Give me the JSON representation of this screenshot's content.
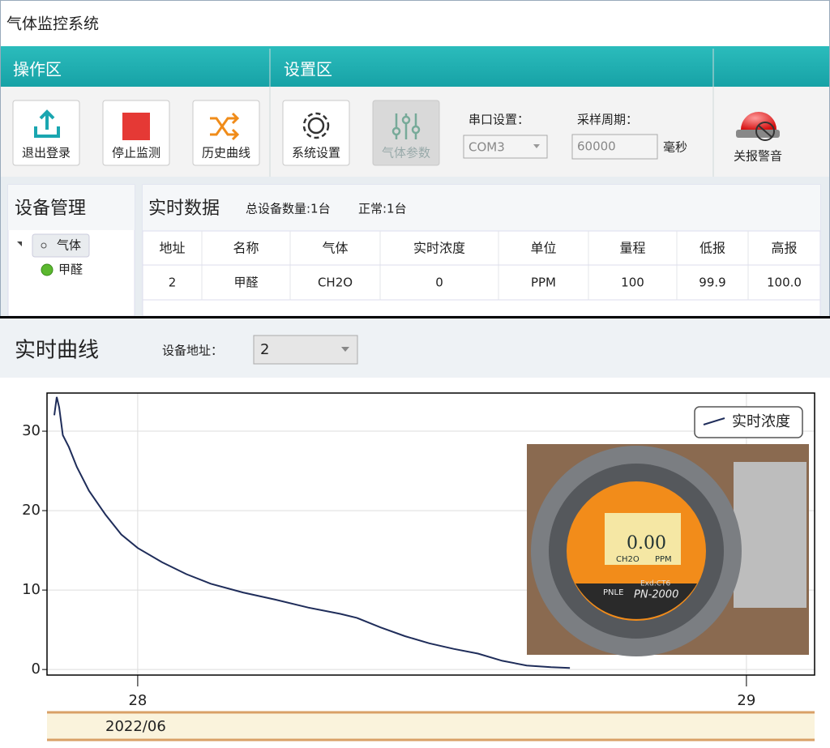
{
  "window": {
    "title": "气体监控系统"
  },
  "toolbar": {
    "sections": [
      {
        "title": "操作区",
        "buttons": [
          "退出登录",
          "停止监测",
          "历史曲线"
        ]
      },
      {
        "title": "设置区",
        "buttons": [
          "系统设置",
          "气体参数"
        ]
      }
    ],
    "serial_label": "串口设置：",
    "serial_value": "COM3",
    "period_label": "采样周期：",
    "period_value": "60000",
    "period_unit": "毫秒",
    "alarm_button": "关报警音"
  },
  "device_panel": {
    "title": "设备管理",
    "group": "气体",
    "items": [
      "甲醛"
    ]
  },
  "realtime_data": {
    "title": "实时数据",
    "total": "总设备数量:1台",
    "normal": "正常:1台",
    "columns": [
      "地址",
      "名称",
      "气体",
      "实时浓度",
      "单位",
      "量程",
      "低报",
      "高报"
    ],
    "rows": [
      [
        "2",
        "甲醛",
        "CH2O",
        "0",
        "PPM",
        "100",
        "99.9",
        "100.0"
      ]
    ]
  },
  "curve_panel": {
    "title": "实时曲线",
    "address_label": "设备地址：",
    "address_value": "2"
  },
  "chart_data": {
    "type": "line",
    "x": [
      27.863,
      27.867,
      27.871,
      27.877,
      27.887,
      27.9,
      27.92,
      27.947,
      27.973,
      28.0,
      28.04,
      28.08,
      28.12,
      28.173,
      28.226,
      28.28,
      28.333,
      28.36,
      28.399,
      28.439,
      28.479,
      28.519,
      28.559,
      28.599,
      28.639,
      28.679,
      28.71
    ],
    "series": [
      {
        "name": "实时浓度",
        "color": "#1f2d5a",
        "values": [
          32,
          34.3,
          33,
          29.5,
          28,
          25.5,
          22.5,
          19.5,
          17,
          15.3,
          13.5,
          12,
          10.8,
          9.7,
          8.8,
          7.8,
          7,
          6.5,
          5.3,
          4.2,
          3.3,
          2.6,
          2,
          1.1,
          0.5,
          0.3,
          0.2
        ]
      }
    ],
    "xlim": [
      27.851,
      29.112
    ],
    "xticks": [
      28,
      29
    ],
    "x_period": "2022/06",
    "ylim": [
      -0.7,
      34.8
    ],
    "yticks": [
      0,
      10,
      20,
      30
    ],
    "grid": true,
    "legend": "upper right"
  },
  "photo": {
    "reading": "0.00",
    "gas": "CH2O",
    "unit": "PPM",
    "brand": "PNLE",
    "model": "PN-2000",
    "cert": "Exd:CT6"
  }
}
